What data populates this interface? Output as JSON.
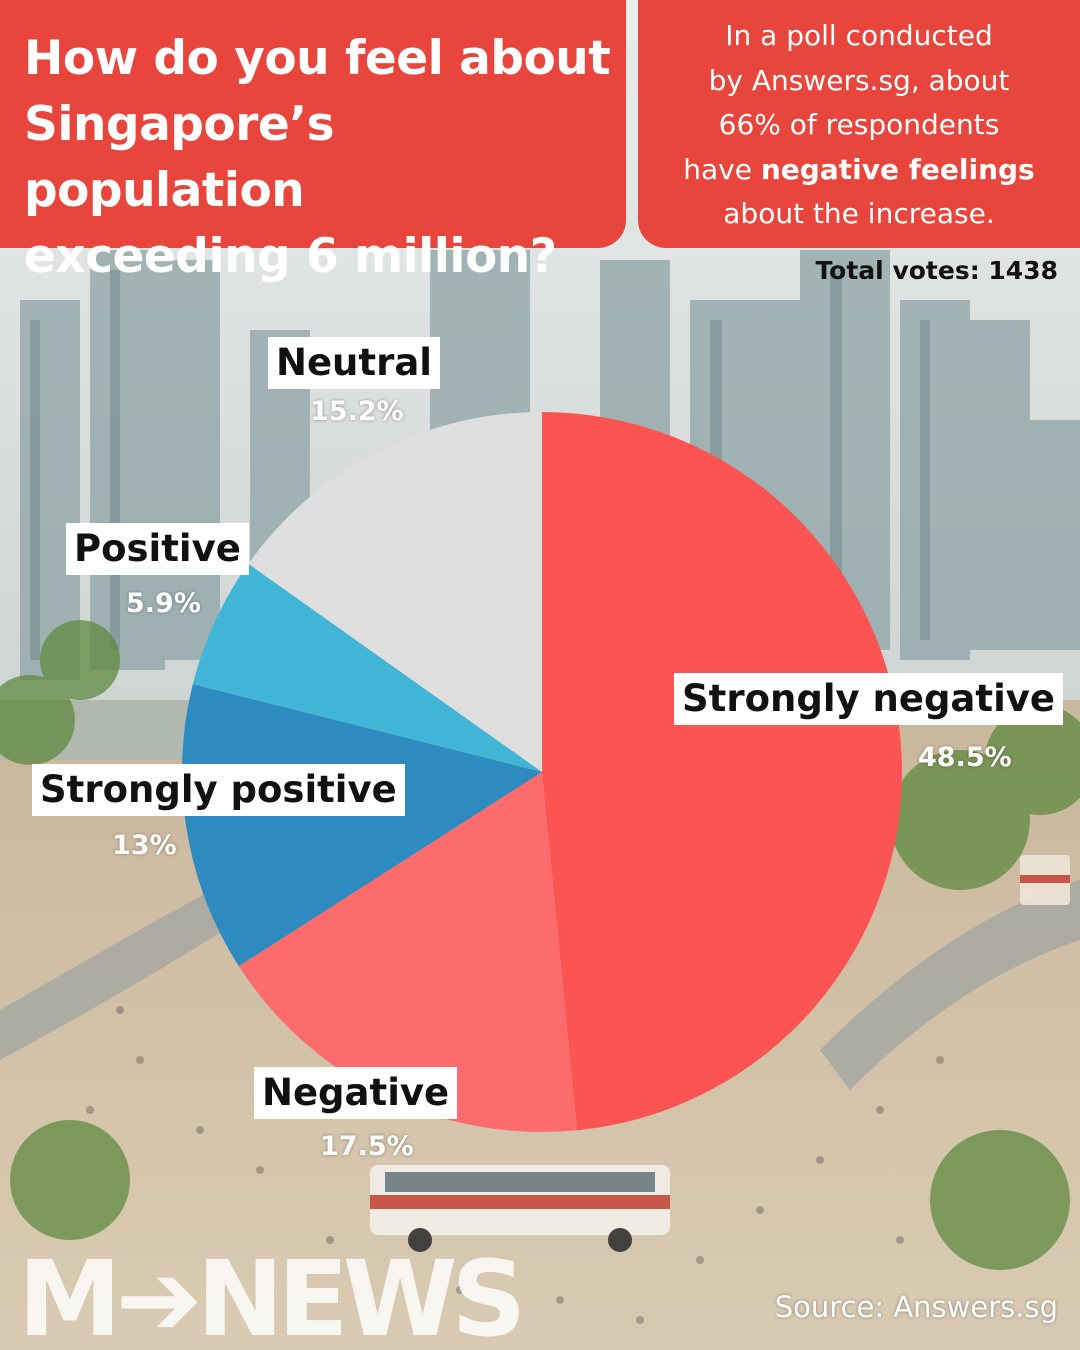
{
  "title": "How do you feel about Singapore’s population exceeding 6 million?",
  "title_lines": [
    "How do you feel about",
    "Singapore’s population",
    "exceeding 6 million?"
  ],
  "info": {
    "line1": "In a poll conducted",
    "line2": "by Answers.sg, about",
    "line3": "66% of respondents",
    "line4_prefix": "have ",
    "line4_bold": "negative feelings",
    "line5": "about the increase."
  },
  "total_votes": "Total votes: 1438",
  "chart_data": {
    "type": "pie",
    "start_angle_deg": 0,
    "direction": "clockwise",
    "slices": [
      {
        "name": "Strongly negative",
        "value": 48.5,
        "label": "48.5%",
        "color": "#fb5452"
      },
      {
        "name": "Negative",
        "value": 17.5,
        "label": "17.5%",
        "color": "#fc6c6c"
      },
      {
        "name": "Strongly positive",
        "value": 13,
        "label": "13%",
        "color": "#2e8bc0"
      },
      {
        "name": "Positive",
        "value": 5.9,
        "label": "5.9%",
        "color": "#40b5d6"
      },
      {
        "name": "Neutral",
        "value": 15.2,
        "label": "15.2%",
        "color": "#dedede"
      }
    ]
  },
  "source": "Source: Answers.sg",
  "brand": "M NEWS",
  "colors": {
    "accent": "#e8453c",
    "label_bg": "#ffffff"
  }
}
